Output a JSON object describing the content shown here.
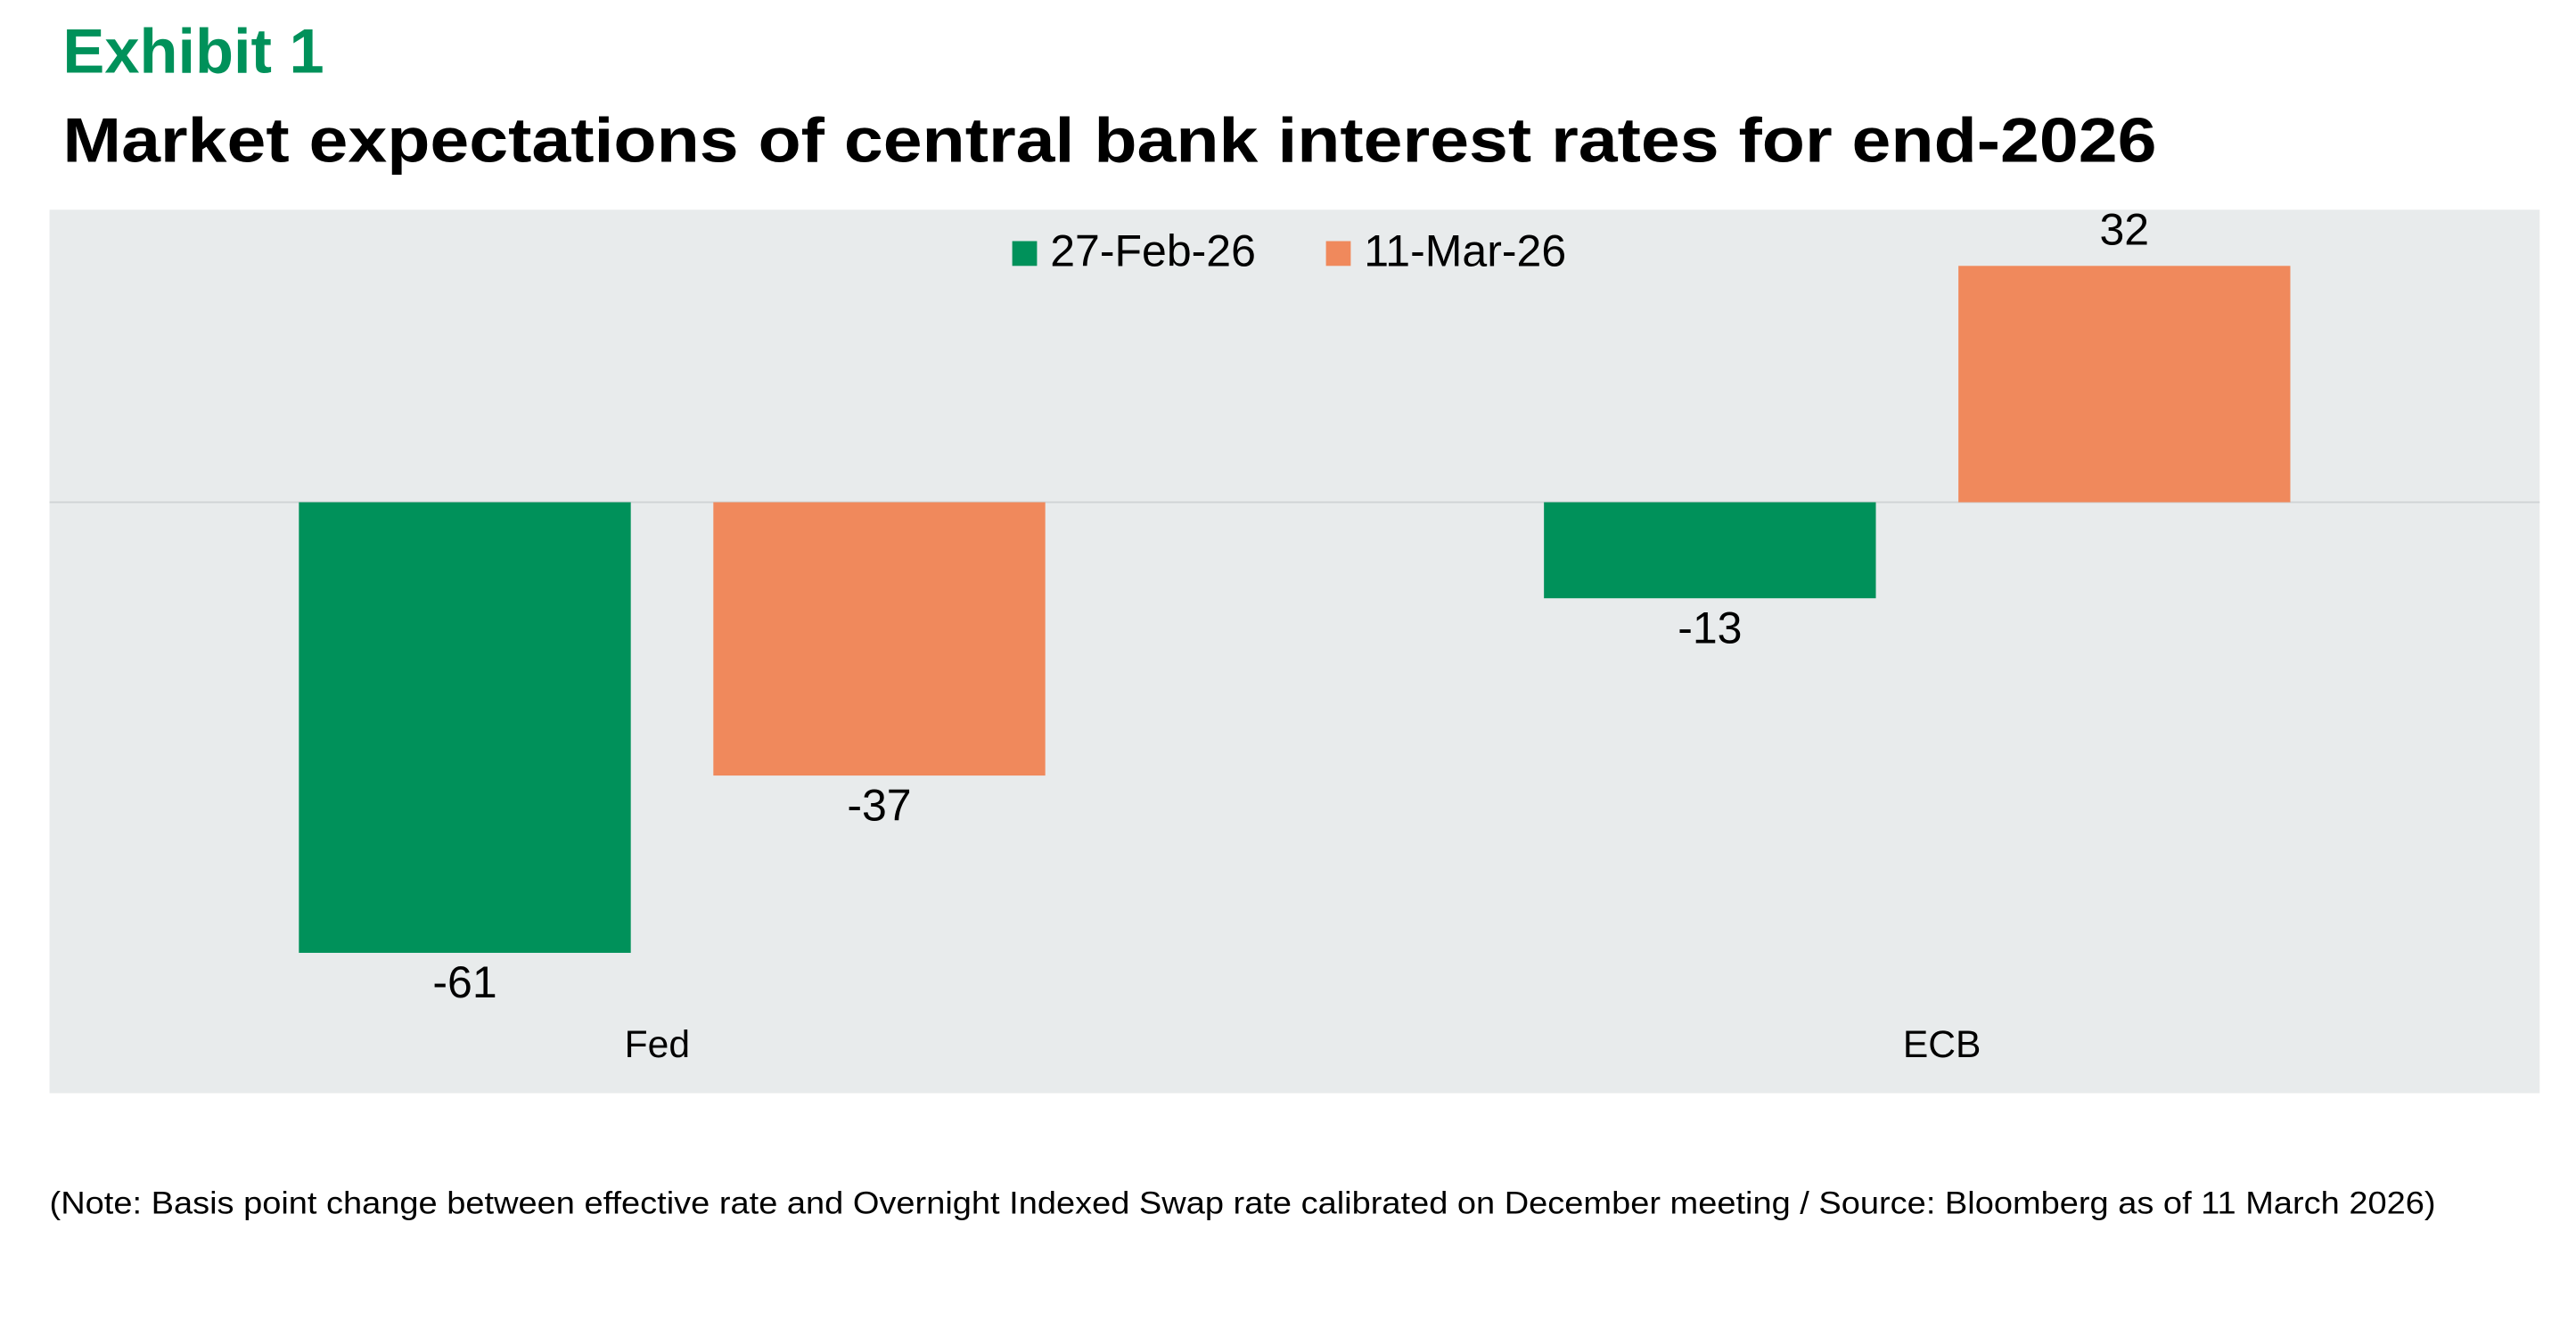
{
  "chart_data": {
    "type": "bar",
    "exhibit": "Exhibit 1",
    "title": "Market expectations of central bank interest rates for end-2026",
    "categories": [
      "Fed",
      "ECB"
    ],
    "series": [
      {
        "name": "27-Feb-26",
        "color": "#00915a",
        "values": [
          -61,
          -13
        ]
      },
      {
        "name": "11-Mar-26",
        "color": "#f0895c",
        "values": [
          -37,
          32
        ]
      }
    ],
    "ylim": [
      -80,
      39.6
    ],
    "note": "(Note: Basis point change between effective rate and Overnight Indexed Swap rate calibrated on December meeting / Source: Bloomberg as of 11 March 2026)"
  }
}
